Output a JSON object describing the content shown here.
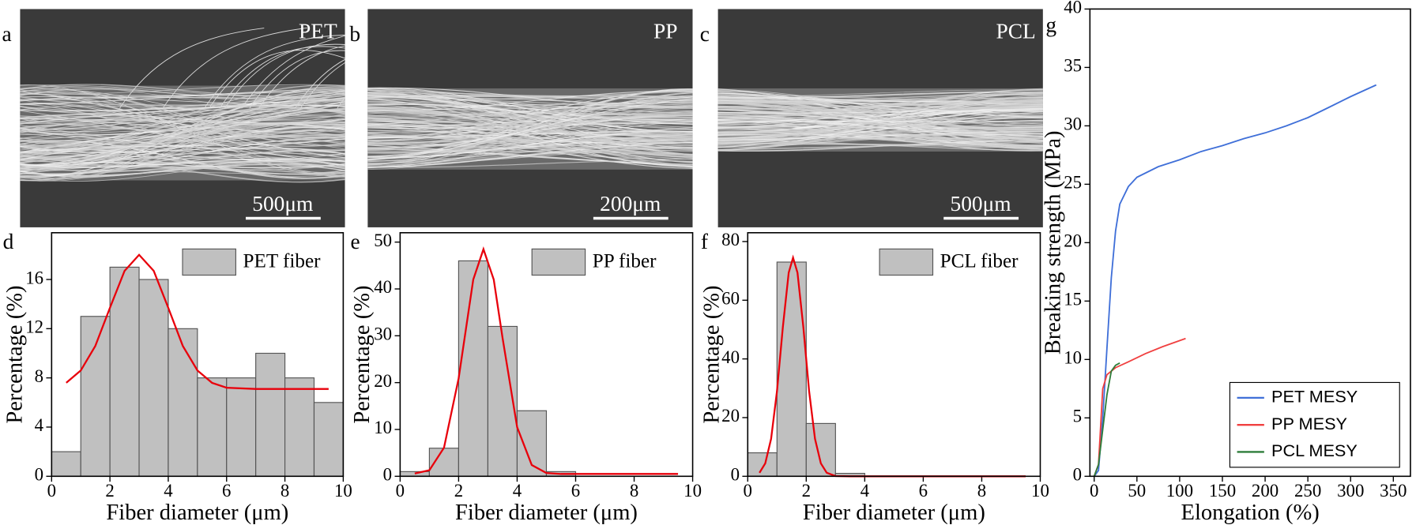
{
  "images": [
    {
      "panel": "a",
      "label": "PET",
      "scale_bar": "500μm"
    },
    {
      "panel": "b",
      "label": "PP",
      "scale_bar": "200μm"
    },
    {
      "panel": "c",
      "label": "PCL",
      "scale_bar": "500μm"
    }
  ],
  "chart_data": [
    {
      "type": "histogram",
      "panel": "d",
      "xlabel": "Fiber diameter (μm)",
      "ylabel": "Percentage (%)",
      "bins": [
        0,
        1,
        2,
        3,
        4,
        5,
        6,
        7,
        8,
        9,
        10
      ],
      "series": [
        {
          "name": "PET fiber",
          "color": "#c0c0c0",
          "values": [
            2,
            13,
            17,
            16,
            12,
            8,
            8,
            10,
            8,
            6
          ]
        }
      ],
      "fit_line": {
        "color": "#e8000b",
        "x": [
          0.5,
          1,
          1.5,
          2,
          2.5,
          3,
          3.5,
          4,
          4.5,
          5,
          5.5,
          6,
          7,
          8,
          9,
          9.5
        ],
        "values": [
          7.6,
          8.6,
          10.6,
          13.7,
          16.7,
          18,
          16.7,
          13.7,
          10.6,
          8.6,
          7.6,
          7.2,
          7.1,
          7.1,
          7.1,
          7.1
        ]
      },
      "xlim": [
        0,
        10
      ],
      "xticks": [
        0,
        2,
        4,
        6,
        8,
        10
      ],
      "ylim": [
        0,
        19.8
      ],
      "yticks": [
        0,
        4,
        8,
        12,
        16
      ],
      "legend": "upper right"
    },
    {
      "type": "histogram",
      "panel": "e",
      "xlabel": "Fiber diameter (μm)",
      "ylabel": "Percentage (%)",
      "bins": [
        0,
        1,
        2,
        3,
        4,
        5,
        6
      ],
      "series": [
        {
          "name": "PP fiber",
          "color": "#c0c0c0",
          "values": [
            1,
            6,
            46,
            32,
            14,
            1
          ]
        }
      ],
      "fit_line": {
        "color": "#e8000b",
        "x": [
          0.5,
          1,
          1.5,
          2,
          2.5,
          2.85,
          3.2,
          3.5,
          4,
          4.5,
          5,
          5.5,
          6,
          7,
          8,
          9,
          9.5
        ],
        "values": [
          0.6,
          1.3,
          6.1,
          20.9,
          42,
          48.5,
          42,
          29.6,
          10.5,
          2.4,
          0.7,
          0.5,
          0.5,
          0.5,
          0.5,
          0.5,
          0.5
        ]
      },
      "xlim": [
        0,
        10
      ],
      "xticks": [
        0,
        2,
        4,
        6,
        8,
        10
      ],
      "ylim": [
        0,
        52
      ],
      "yticks": [
        0,
        10,
        20,
        30,
        40,
        50
      ],
      "legend": "upper right"
    },
    {
      "type": "histogram",
      "panel": "f",
      "xlabel": "Fiber diameter (μm)",
      "ylabel": "Percentage (%)",
      "bins": [
        0,
        1,
        2,
        3,
        4
      ],
      "series": [
        {
          "name": "PCL fiber",
          "color": "#c0c0c0",
          "values": [
            8,
            73,
            18,
            1
          ]
        }
      ],
      "fit_line": {
        "color": "#e8000b",
        "x": [
          0.4,
          0.6,
          0.8,
          1,
          1.2,
          1.4,
          1.55,
          1.7,
          1.9,
          2.1,
          2.3,
          2.5,
          2.7,
          3,
          3.5,
          4,
          5,
          6,
          7,
          8,
          9,
          9.5
        ],
        "values": [
          1.2,
          4.4,
          12.8,
          29,
          50.8,
          69.4,
          74.5,
          69.4,
          50.8,
          29,
          12.8,
          4.4,
          1.2,
          0.1,
          0,
          0,
          0,
          0,
          0,
          0,
          0,
          0
        ]
      },
      "xlim": [
        0,
        10
      ],
      "xticks": [
        0,
        2,
        4,
        6,
        8,
        10
      ],
      "ylim": [
        0,
        83
      ],
      "yticks": [
        0,
        20,
        40,
        60,
        80
      ],
      "legend": "upper right"
    },
    {
      "type": "line",
      "panel": "g",
      "xlabel": "Elongation (%)",
      "ylabel": "Breaking strength (MPa)",
      "series": [
        {
          "name": "PET MESY",
          "color": "#3f6fd8",
          "x": [
            0,
            5,
            10,
            15,
            20,
            25,
            30,
            40,
            50,
            75,
            100,
            125,
            150,
            175,
            200,
            225,
            250,
            275,
            300,
            330
          ],
          "values": [
            0,
            0.5,
            5,
            11,
            17,
            21,
            23.3,
            24.8,
            25.6,
            26.5,
            27.1,
            27.8,
            28.3,
            28.9,
            29.4,
            30,
            30.7,
            31.6,
            32.5,
            33.5
          ]
        },
        {
          "name": "PP MESY",
          "color": "#f04040",
          "x": [
            0,
            5,
            10,
            15,
            25,
            40,
            60,
            80,
            107
          ],
          "values": [
            0,
            1,
            7.5,
            8.7,
            9.3,
            9.8,
            10.5,
            11.1,
            11.8
          ]
        },
        {
          "name": "PCL MESY",
          "color": "#2e7d3a",
          "x": [
            0,
            5,
            10,
            15,
            20,
            25,
            30
          ],
          "values": [
            0,
            1,
            4,
            7,
            9,
            9.5,
            9.7
          ]
        }
      ],
      "xlim": [
        -5,
        370
      ],
      "xticks": [
        0,
        50,
        100,
        150,
        200,
        250,
        300,
        350
      ],
      "ylim": [
        0,
        40
      ],
      "yticks": [
        0,
        5,
        10,
        15,
        20,
        25,
        30,
        35,
        40
      ],
      "legend": "lower right"
    }
  ]
}
